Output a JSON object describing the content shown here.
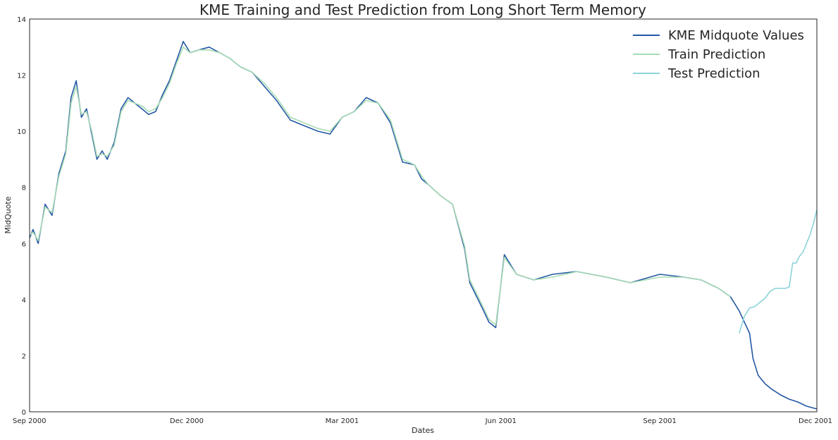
{
  "chart_data": {
    "type": "line",
    "title": "KME Training and Test Prediction from Long Short Term Memory",
    "xlabel": "Dates",
    "ylabel": "MidQuote",
    "x_range": [
      "2000-09-01",
      "2001-12-01"
    ],
    "x_ticks": [
      {
        "date": "2000-09-01",
        "label": "Sep 2000"
      },
      {
        "date": "2000-12-01",
        "label": "Dec 2000"
      },
      {
        "date": "2001-03-01",
        "label": "Mar 2001"
      },
      {
        "date": "2001-06-01",
        "label": "Jun 2001"
      },
      {
        "date": "2001-09-01",
        "label": "Sep 2001"
      },
      {
        "date": "2001-12-01",
        "label": "Dec 2001"
      }
    ],
    "ylim": [
      0,
      14
    ],
    "y_ticks": [
      0,
      2,
      4,
      6,
      8,
      10,
      12,
      14
    ],
    "grid": false,
    "legend_position": "top-right",
    "series": [
      {
        "name": "KME Midquote Values",
        "color": "#2458a4",
        "x": [
          "2000-09-01",
          "2000-09-03",
          "2000-09-06",
          "2000-09-10",
          "2000-09-14",
          "2000-09-18",
          "2000-09-22",
          "2000-09-25",
          "2000-09-28",
          "2000-10-01",
          "2000-10-04",
          "2000-10-07",
          "2000-10-10",
          "2000-10-13",
          "2000-10-16",
          "2000-10-20",
          "2000-10-24",
          "2000-10-28",
          "2000-11-01",
          "2000-11-05",
          "2000-11-09",
          "2000-11-13",
          "2000-11-17",
          "2000-11-21",
          "2000-11-25",
          "2000-11-29",
          "2000-12-03",
          "2000-12-08",
          "2000-12-14",
          "2000-12-20",
          "2000-12-26",
          "2001-01-01",
          "2001-01-08",
          "2001-01-15",
          "2001-01-22",
          "2001-01-30",
          "2001-02-07",
          "2001-02-15",
          "2001-02-22",
          "2001-03-01",
          "2001-03-08",
          "2001-03-15",
          "2001-03-22",
          "2001-03-29",
          "2001-04-05",
          "2001-04-12",
          "2001-04-16",
          "2001-04-20",
          "2001-04-27",
          "2001-05-04",
          "2001-05-11",
          "2001-05-14",
          "2001-05-18",
          "2001-05-22",
          "2001-05-25",
          "2001-05-29",
          "2001-06-03",
          "2001-06-10",
          "2001-06-20",
          "2001-07-01",
          "2001-07-15",
          "2001-08-01",
          "2001-08-15",
          "2001-09-01",
          "2001-09-15",
          "2001-09-25",
          "2001-10-05",
          "2001-10-12",
          "2001-10-17",
          "2001-10-20",
          "2001-10-23",
          "2001-10-25",
          "2001-10-28",
          "2001-11-01",
          "2001-11-05",
          "2001-11-10",
          "2001-11-15",
          "2001-11-20",
          "2001-11-25",
          "2001-12-01"
        ],
        "values": [
          6.2,
          6.5,
          6.0,
          7.4,
          7.0,
          8.5,
          9.3,
          11.2,
          11.8,
          10.5,
          10.8,
          9.9,
          9.0,
          9.3,
          9.0,
          9.6,
          10.8,
          11.2,
          11.0,
          10.8,
          10.6,
          10.7,
          11.3,
          11.8,
          12.5,
          13.2,
          12.8,
          12.9,
          13.0,
          12.8,
          12.6,
          12.3,
          12.1,
          11.6,
          11.1,
          10.4,
          10.2,
          10.0,
          9.9,
          10.5,
          10.7,
          11.2,
          11.0,
          10.3,
          8.9,
          8.8,
          8.3,
          8.1,
          7.7,
          7.4,
          5.8,
          4.6,
          4.1,
          3.6,
          3.2,
          3.0,
          5.6,
          4.9,
          4.7,
          4.9,
          5.0,
          4.8,
          4.6,
          4.9,
          4.8,
          4.7,
          4.4,
          4.1,
          3.6,
          3.2,
          2.8,
          1.9,
          1.3,
          1.0,
          0.8,
          0.6,
          0.45,
          0.35,
          0.2,
          0.1
        ]
      },
      {
        "name": "Train Prediction",
        "color": "#a8dbb4",
        "x": [
          "2000-09-01",
          "2000-09-03",
          "2000-09-06",
          "2000-09-10",
          "2000-09-14",
          "2000-09-18",
          "2000-09-22",
          "2000-09-25",
          "2000-09-28",
          "2000-10-01",
          "2000-10-04",
          "2000-10-07",
          "2000-10-10",
          "2000-10-13",
          "2000-10-16",
          "2000-10-20",
          "2000-10-24",
          "2000-10-28",
          "2000-11-01",
          "2000-11-05",
          "2000-11-09",
          "2000-11-13",
          "2000-11-17",
          "2000-11-21",
          "2000-11-25",
          "2000-11-29",
          "2000-12-03",
          "2000-12-08",
          "2000-12-14",
          "2000-12-20",
          "2000-12-26",
          "2001-01-01",
          "2001-01-08",
          "2001-01-15",
          "2001-01-22",
          "2001-01-30",
          "2001-02-07",
          "2001-02-15",
          "2001-02-22",
          "2001-03-01",
          "2001-03-08",
          "2001-03-15",
          "2001-03-22",
          "2001-03-29",
          "2001-04-05",
          "2001-04-12",
          "2001-04-16",
          "2001-04-20",
          "2001-04-27",
          "2001-05-04",
          "2001-05-11",
          "2001-05-14",
          "2001-05-18",
          "2001-05-22",
          "2001-05-25",
          "2001-05-29",
          "2001-06-03",
          "2001-06-10",
          "2001-06-20",
          "2001-07-01",
          "2001-07-15",
          "2001-08-01",
          "2001-08-15",
          "2001-09-01",
          "2001-09-15",
          "2001-09-25",
          "2001-10-05",
          "2001-10-12"
        ],
        "values": [
          6.3,
          6.4,
          6.1,
          7.3,
          7.1,
          8.4,
          9.2,
          11.0,
          11.6,
          10.6,
          10.7,
          10.0,
          9.1,
          9.2,
          9.1,
          9.5,
          10.7,
          11.1,
          11.0,
          10.9,
          10.7,
          10.8,
          11.2,
          11.7,
          12.4,
          13.0,
          12.8,
          12.9,
          12.9,
          12.8,
          12.6,
          12.3,
          12.1,
          11.7,
          11.2,
          10.5,
          10.3,
          10.1,
          10.0,
          10.5,
          10.7,
          11.1,
          11.0,
          10.4,
          9.0,
          8.8,
          8.4,
          8.1,
          7.7,
          7.4,
          5.9,
          4.7,
          4.2,
          3.7,
          3.3,
          3.1,
          5.5,
          4.9,
          4.7,
          4.8,
          5.0,
          4.8,
          4.6,
          4.8,
          4.8,
          4.7,
          4.4,
          4.1
        ]
      },
      {
        "name": "Test Prediction",
        "color": "#8dd3d8",
        "x": [
          "2001-10-17",
          "2001-10-20",
          "2001-10-23",
          "2001-10-26",
          "2001-10-29",
          "2001-11-01",
          "2001-11-04",
          "2001-11-07",
          "2001-11-10",
          "2001-11-13",
          "2001-11-15",
          "2001-11-17",
          "2001-11-19",
          "2001-11-21",
          "2001-11-23",
          "2001-11-25",
          "2001-11-27",
          "2001-11-29",
          "2001-12-01"
        ],
        "values": [
          2.8,
          3.4,
          3.7,
          3.75,
          3.9,
          4.05,
          4.3,
          4.4,
          4.4,
          4.4,
          4.45,
          5.3,
          5.3,
          5.55,
          5.7,
          6.0,
          6.3,
          6.7,
          7.2
        ]
      }
    ]
  }
}
